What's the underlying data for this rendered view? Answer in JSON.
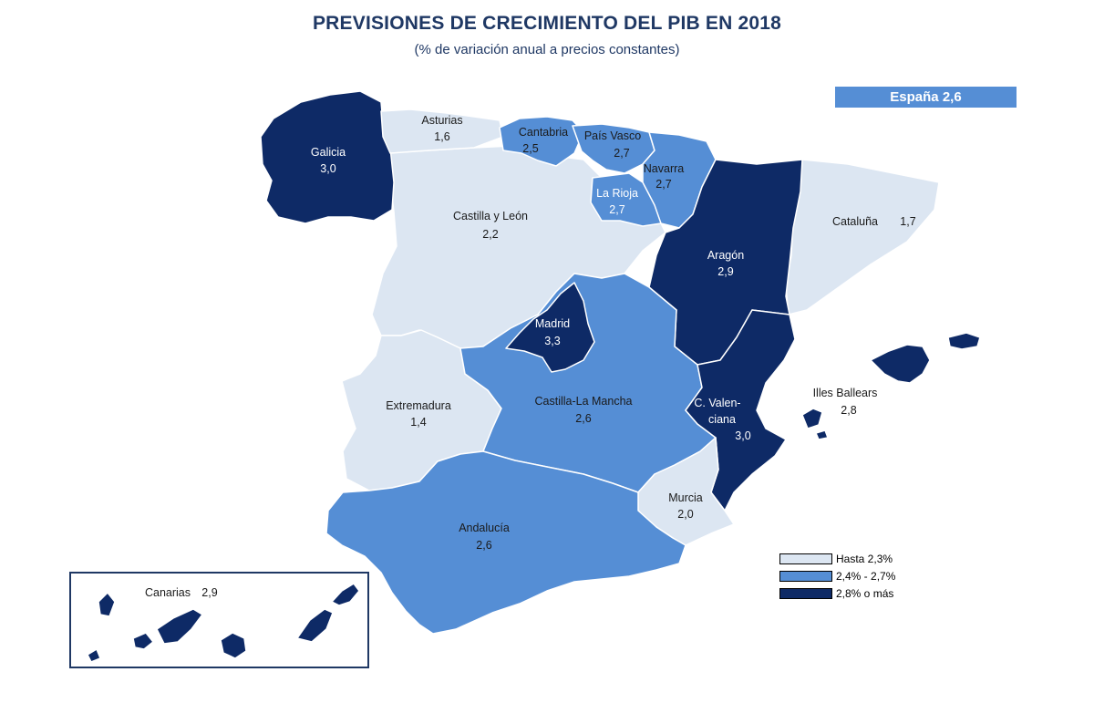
{
  "title": "PREVISIONES DE CRECIMIENTO DEL PIB EN 2018",
  "subtitle": "(% de variación anual a precios constantes)",
  "national": "España 2,6",
  "colors": {
    "low": "#dce6f2",
    "mid": "#558ed5",
    "high": "#0e2a66"
  },
  "regions": {
    "galicia": {
      "name": "Galicia",
      "value": "3,0",
      "level": "high"
    },
    "asturias": {
      "name": "Asturias",
      "value": "1,6",
      "level": "low"
    },
    "cantabria": {
      "name": "Cantabria",
      "value": "2,5",
      "level": "mid"
    },
    "pais_vasco": {
      "name": "País Vasco",
      "value": "2,7",
      "level": "mid"
    },
    "navarra": {
      "name": "Navarra",
      "value": "2,7",
      "level": "mid"
    },
    "la_rioja": {
      "name": "La Rioja",
      "value": "2,7",
      "level": "mid"
    },
    "castilla_leon": {
      "name": "Castilla y León",
      "value": "2,2",
      "level": "low"
    },
    "cataluna": {
      "name": "Cataluña",
      "value": "1,7",
      "level": "low"
    },
    "aragon": {
      "name": "Aragón",
      "value": "2,9",
      "level": "high"
    },
    "madrid": {
      "name": "Madrid",
      "value": "3,3",
      "level": "high"
    },
    "extremadura": {
      "name": "Extremadura",
      "value": "1,4",
      "level": "low"
    },
    "castilla_la_mancha": {
      "name": "Castilla-La Mancha",
      "value": "2,6",
      "level": "mid"
    },
    "valenciana": {
      "name_line1": "C. Valen-",
      "name_line2": "ciana",
      "value": "3,0",
      "level": "high"
    },
    "baleares": {
      "name": "Illes Ballears",
      "value": "2,8",
      "level": "high"
    },
    "murcia": {
      "name": "Murcia",
      "value": "2,0",
      "level": "low"
    },
    "andalucia": {
      "name": "Andalucía",
      "value": "2,6",
      "level": "mid"
    },
    "canarias": {
      "name": "Canarias",
      "value": "2,9",
      "level": "high"
    }
  },
  "legend": [
    {
      "label": "Hasta 2,3%",
      "level": "low"
    },
    {
      "label": "2,4% - 2,7%",
      "level": "mid"
    },
    {
      "label": "2,8% o más",
      "level": "high"
    }
  ]
}
